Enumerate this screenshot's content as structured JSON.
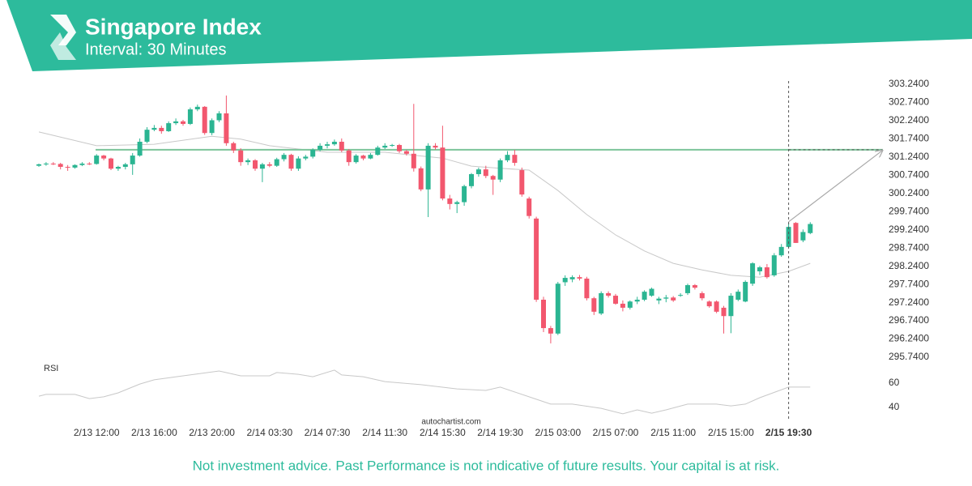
{
  "chart_data": {
    "type": "candlestick",
    "title": "Singapore Index",
    "subtitle": "Interval: 30 Minutes",
    "categories": [
      null,
      null,
      null,
      null,
      null,
      null,
      null,
      null,
      "2/13 12:00",
      null,
      null,
      null,
      null,
      null,
      null,
      null,
      "2/13 16:00",
      null,
      null,
      null,
      null,
      null,
      null,
      null,
      "2/13 20:00",
      null,
      null,
      null,
      null,
      null,
      null,
      null,
      "2/14 03:30",
      null,
      null,
      null,
      null,
      null,
      null,
      null,
      "2/14 07:30",
      null,
      null,
      null,
      null,
      null,
      null,
      null,
      "2/14 11:30",
      null,
      null,
      null,
      null,
      null,
      null,
      null,
      "2/14 15:30",
      null,
      null,
      null,
      null,
      null,
      null,
      null,
      "2/14 19:30",
      null,
      null,
      null,
      null,
      null,
      null,
      null,
      "2/15 03:00",
      null,
      null,
      null,
      null,
      null,
      null,
      null,
      "2/15 07:00",
      null,
      null,
      null,
      null,
      null,
      null,
      null,
      "2/15 11:00",
      null,
      null,
      null,
      null,
      null,
      null,
      null,
      "2/15 15:00",
      null,
      null,
      null,
      null,
      null,
      null,
      null,
      "2/15 19:30",
      null,
      null,
      null
    ],
    "open": [
      301.0,
      301.04,
      301.06,
      301.05,
      300.97,
      300.95,
      301.02,
      301.06,
      301.05,
      301.28,
      301.2,
      300.92,
      300.97,
      301.04,
      301.28,
      301.66,
      301.99,
      302.04,
      301.95,
      302.17,
      302.22,
      302.15,
      302.55,
      302.62,
      301.9,
      302.25,
      302.44,
      301.62,
      301.42,
      301.1,
      301.15,
      300.92,
      301.04,
      301.0,
      301.18,
      301.3,
      300.92,
      301.2,
      301.25,
      301.44,
      301.55,
      301.59,
      301.66,
      301.42,
      301.1,
      301.28,
      301.2,
      301.3,
      301.5,
      301.55,
      301.57,
      301.4,
      301.33,
      300.93,
      300.35,
      301.55,
      301.5,
      300.1,
      299.95,
      300.0,
      300.44,
      300.77,
      300.9,
      300.72,
      300.62,
      301.15,
      301.3,
      300.88,
      300.1,
      299.55,
      297.32,
      296.54,
      296.39,
      297.8,
      297.88,
      297.94,
      297.9,
      297.36,
      296.94,
      297.5,
      297.43,
      297.21,
      297.1,
      297.27,
      297.32,
      297.43,
      297.3,
      297.35,
      297.38,
      297.43,
      297.5,
      297.72,
      297.5,
      297.27,
      297.27,
      297.1,
      296.87,
      297.32,
      297.27,
      297.76,
      298.1,
      298.21,
      297.99,
      298.54,
      298.77,
      299.43,
      298.95,
      299.15
    ],
    "high": [
      301.06,
      301.1,
      301.1,
      301.08,
      301.02,
      301.04,
      301.1,
      301.1,
      301.32,
      301.3,
      301.22,
      301.0,
      301.08,
      301.35,
      301.75,
      302.06,
      302.12,
      302.1,
      302.22,
      302.3,
      302.26,
      302.6,
      302.68,
      302.64,
      302.3,
      302.5,
      302.93,
      301.66,
      301.48,
      301.2,
      301.18,
      301.08,
      301.1,
      301.22,
      301.35,
      301.33,
      301.26,
      301.3,
      301.48,
      301.62,
      301.66,
      301.72,
      301.75,
      301.46,
      301.32,
      301.3,
      301.35,
      301.55,
      301.62,
      301.6,
      301.6,
      301.44,
      302.7,
      300.98,
      301.62,
      301.62,
      302.1,
      300.2,
      300.04,
      300.48,
      300.8,
      300.95,
      301.0,
      300.75,
      301.2,
      301.4,
      301.44,
      300.95,
      300.15,
      299.6,
      297.4,
      296.6,
      297.81,
      297.99,
      297.99,
      298.0,
      297.95,
      297.4,
      297.55,
      297.55,
      297.48,
      297.3,
      297.3,
      297.4,
      297.58,
      297.65,
      297.4,
      297.45,
      297.42,
      297.5,
      297.76,
      297.75,
      297.55,
      297.3,
      297.3,
      297.15,
      297.5,
      297.6,
      297.85,
      298.35,
      298.25,
      298.3,
      298.6,
      298.85,
      299.43,
      299.45,
      299.25,
      299.45
    ],
    "low": [
      300.97,
      301.0,
      301.02,
      300.9,
      300.86,
      300.92,
      300.99,
      301.02,
      301.03,
      301.15,
      300.88,
      300.86,
      300.9,
      300.75,
      301.25,
      301.62,
      301.95,
      301.88,
      301.93,
      302.12,
      302.1,
      302.12,
      302.5,
      301.85,
      301.84,
      302.2,
      301.55,
      301.35,
      301.0,
      301.02,
      300.86,
      300.55,
      300.96,
      300.97,
      301.12,
      300.86,
      300.86,
      301.15,
      301.2,
      301.4,
      301.48,
      301.55,
      301.37,
      301.0,
      301.06,
      301.15,
      301.18,
      301.28,
      301.46,
      301.52,
      301.35,
      301.28,
      300.84,
      300.3,
      299.59,
      301.44,
      300.05,
      299.8,
      299.7,
      299.9,
      300.38,
      300.7,
      300.66,
      300.2,
      300.55,
      301.1,
      301.0,
      300.15,
      299.55,
      297.26,
      296.43,
      296.12,
      296.35,
      297.7,
      297.8,
      297.85,
      297.3,
      296.9,
      296.9,
      297.38,
      297.18,
      297.0,
      297.05,
      297.2,
      297.28,
      297.4,
      297.2,
      297.25,
      297.26,
      297.4,
      297.45,
      297.6,
      297.3,
      297.1,
      296.95,
      296.39,
      296.4,
      297.28,
      297.25,
      297.7,
      298.0,
      297.9,
      297.95,
      298.5,
      298.75,
      298.88,
      298.9,
      299.12
    ],
    "close": [
      301.04,
      301.06,
      301.05,
      300.97,
      300.95,
      301.02,
      301.06,
      301.05,
      301.28,
      301.2,
      300.92,
      300.97,
      301.04,
      301.28,
      301.66,
      301.99,
      302.04,
      301.95,
      302.17,
      302.22,
      302.15,
      302.55,
      302.62,
      301.9,
      302.25,
      302.44,
      301.62,
      301.42,
      301.1,
      301.15,
      300.92,
      301.04,
      301.0,
      301.18,
      301.3,
      300.92,
      301.2,
      301.25,
      301.44,
      301.55,
      301.59,
      301.66,
      301.42,
      301.1,
      301.28,
      301.2,
      301.3,
      301.5,
      301.55,
      301.57,
      301.4,
      301.33,
      300.93,
      300.35,
      301.55,
      301.5,
      300.1,
      299.95,
      300.0,
      300.44,
      300.77,
      300.9,
      300.72,
      300.62,
      301.15,
      301.3,
      301.08,
      300.21,
      299.62,
      297.32,
      296.54,
      296.39,
      297.76,
      297.92,
      297.94,
      297.9,
      297.36,
      296.99,
      297.5,
      297.43,
      297.21,
      297.1,
      297.27,
      297.32,
      297.54,
      297.62,
      297.35,
      297.38,
      297.3,
      297.45,
      297.72,
      297.65,
      297.36,
      297.14,
      296.99,
      296.87,
      297.43,
      297.54,
      297.81,
      298.32,
      298.21,
      297.94,
      298.54,
      298.77,
      299.32,
      298.88,
      299.18,
      299.4
    ],
    "up_color": "#2bb592",
    "down_color": "#f2576e",
    "ylim": [
      295.54,
      303.44
    ],
    "yticks": [
      {
        "value": 303.24,
        "label": "303.2400"
      },
      {
        "value": 302.74,
        "label": "302.7400"
      },
      {
        "value": 302.24,
        "label": "302.2400"
      },
      {
        "value": 301.74,
        "label": "301.7400"
      },
      {
        "value": 301.24,
        "label": "301.2400"
      },
      {
        "value": 300.74,
        "label": "300.7400"
      },
      {
        "value": 300.24,
        "label": "300.2400"
      },
      {
        "value": 299.74,
        "label": "299.7400"
      },
      {
        "value": 299.24,
        "label": "299.2400"
      },
      {
        "value": 298.74,
        "label": "298.7400"
      },
      {
        "value": 298.24,
        "label": "298.2400"
      },
      {
        "value": 297.74,
        "label": "297.7400"
      },
      {
        "value": 297.24,
        "label": "297.2400"
      },
      {
        "value": 296.74,
        "label": "296.7400"
      },
      {
        "value": 296.24,
        "label": "296.2400"
      },
      {
        "value": 295.74,
        "label": "295.7400"
      }
    ],
    "level": {
      "value": 301.44,
      "color": "#7cc49a"
    },
    "moving_average": {
      "x": [
        0,
        8,
        16,
        24,
        28,
        32,
        40,
        48,
        56,
        60,
        64,
        68,
        72,
        76,
        80,
        84,
        88,
        92,
        96,
        100,
        104,
        107
      ],
      "values": [
        301.93,
        301.55,
        301.59,
        301.81,
        301.73,
        301.55,
        301.37,
        301.37,
        301.21,
        300.99,
        300.93,
        300.88,
        300.32,
        299.66,
        299.1,
        298.66,
        298.32,
        298.14,
        297.99,
        297.94,
        298.1,
        298.32
      ],
      "color": "#c8c8c8"
    },
    "forecast": {
      "x": [
        104,
        117
      ],
      "values": [
        299.46,
        301.42
      ],
      "color": "#a8a8a8"
    },
    "current_index": 104,
    "rsi": {
      "label": "RSI",
      "x": [
        0,
        1,
        5,
        7,
        9,
        11,
        14,
        16,
        20,
        25,
        28,
        32,
        33,
        36,
        38,
        41,
        42,
        45,
        48,
        53,
        58,
        62,
        64,
        69,
        71,
        74,
        78,
        81,
        83,
        85,
        87,
        90,
        94,
        96,
        98,
        100,
        104,
        107
      ],
      "values": [
        49.3,
        50.7,
        50.7,
        47.3,
        48.7,
        52,
        59.3,
        62.7,
        66,
        70,
        66,
        66,
        68.7,
        67.3,
        65.3,
        70.7,
        66.7,
        65.3,
        61.3,
        58.7,
        55.3,
        54,
        56.7,
        46.7,
        42.7,
        42.7,
        39.3,
        34.7,
        38,
        35.3,
        38,
        42.7,
        42.7,
        41.3,
        42.7,
        48,
        56.7,
        56.7
      ],
      "ylim": [
        32,
        72
      ],
      "yticks": [
        60,
        40
      ],
      "color": "#c8c8c8"
    },
    "watermark": "autochartist.com"
  },
  "footer": "Not investment advice. Past Performance is not indicative of future results. Your capital is at risk."
}
